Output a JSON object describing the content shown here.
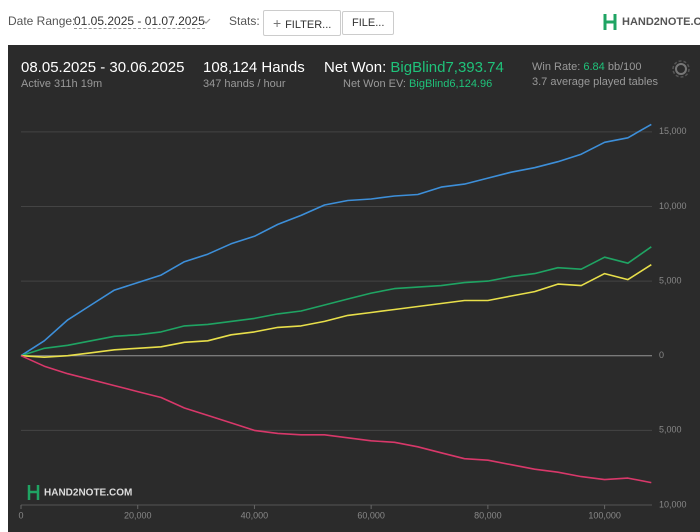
{
  "header": {
    "date_range_label": "Date Range:",
    "date_range": "01.05.2025 - 01.07.2025",
    "stats_label": "Stats:",
    "filter_button": "FILTER...",
    "file_button": "FILE...",
    "logo": "HAND2NOTE.COM"
  },
  "summary": {
    "period": "08.05.2025 - 30.06.2025",
    "active": "Active 311h 19m",
    "hands": "108,124 Hands",
    "hands_per_hour": "347 hands / hour",
    "net_won_label": "Net Won:",
    "net_won": "BigBlind7,393.74",
    "net_won_ev_label": "Net Won  EV:",
    "net_won_ev": "BigBlind6,124.96",
    "win_rate_label": "Win Rate:",
    "win_rate": "6.84",
    "win_rate_unit": "bb/100",
    "tables": "3.7 average played tables"
  },
  "chart_data": {
    "type": "line",
    "watermark": "HAND2NOTE.COM",
    "x": [
      0,
      4000,
      8000,
      12000,
      16000,
      20000,
      24000,
      28000,
      32000,
      36000,
      40000,
      44000,
      48000,
      52000,
      56000,
      60000,
      64000,
      68000,
      72000,
      76000,
      80000,
      84000,
      88000,
      92000,
      96000,
      100000,
      104000,
      108000
    ],
    "series": [
      {
        "color": "#3d8fd9",
        "values": [
          0,
          1000,
          2400,
          3400,
          4400,
          4900,
          5400,
          6300,
          6800,
          7500,
          8000,
          8800,
          9400,
          10100,
          10400,
          10500,
          10700,
          10800,
          11300,
          11500,
          11900,
          12300,
          12600,
          13000,
          13500,
          14300,
          14600,
          15500
        ]
      },
      {
        "color": "#1fa463",
        "values": [
          0,
          500,
          700,
          1000,
          1300,
          1400,
          1600,
          2000,
          2100,
          2300,
          2500,
          2800,
          3000,
          3400,
          3800,
          4200,
          4500,
          4600,
          4700,
          4900,
          5000,
          5300,
          5500,
          5900,
          5800,
          6600,
          6200,
          7300
        ]
      },
      {
        "color": "#e8df4a",
        "values": [
          0,
          -100,
          0,
          200,
          400,
          500,
          600,
          900,
          1000,
          1400,
          1600,
          1900,
          2000,
          2300,
          2700,
          2900,
          3100,
          3300,
          3500,
          3700,
          3700,
          4000,
          4300,
          4800,
          4700,
          5500,
          5100,
          6100
        ]
      },
      {
        "color": "#d8386a",
        "values": [
          0,
          -700,
          -1200,
          -1600,
          -2000,
          -2400,
          -2800,
          -3500,
          -4000,
          -4500,
          -5000,
          -5200,
          -5300,
          -5300,
          -5500,
          -5700,
          -5800,
          -6100,
          -6500,
          -6900,
          -7000,
          -7300,
          -7600,
          -7800,
          -8100,
          -8300,
          -8200,
          -8500
        ]
      }
    ],
    "xlim": [
      0,
      108124
    ],
    "ylim": [
      -10000,
      17000
    ],
    "xticks": [
      0,
      {
        "value": 20000,
        "label": "20,000"
      },
      {
        "value": 40000,
        "label": "40,000"
      },
      {
        "value": 60000,
        "label": "60,000"
      },
      {
        "value": 80000,
        "label": "80,000"
      },
      {
        "value": 100000,
        "label": "100,000"
      }
    ],
    "yticks": [
      {
        "value": 15000,
        "label": "15,000"
      },
      {
        "value": 10000,
        "label": "10,000"
      },
      {
        "value": 5000,
        "label": "5,000"
      },
      0,
      {
        "value": -5000,
        "label": "5,000"
      },
      {
        "value": -10000,
        "label": "10,000"
      }
    ],
    "grid": true
  }
}
